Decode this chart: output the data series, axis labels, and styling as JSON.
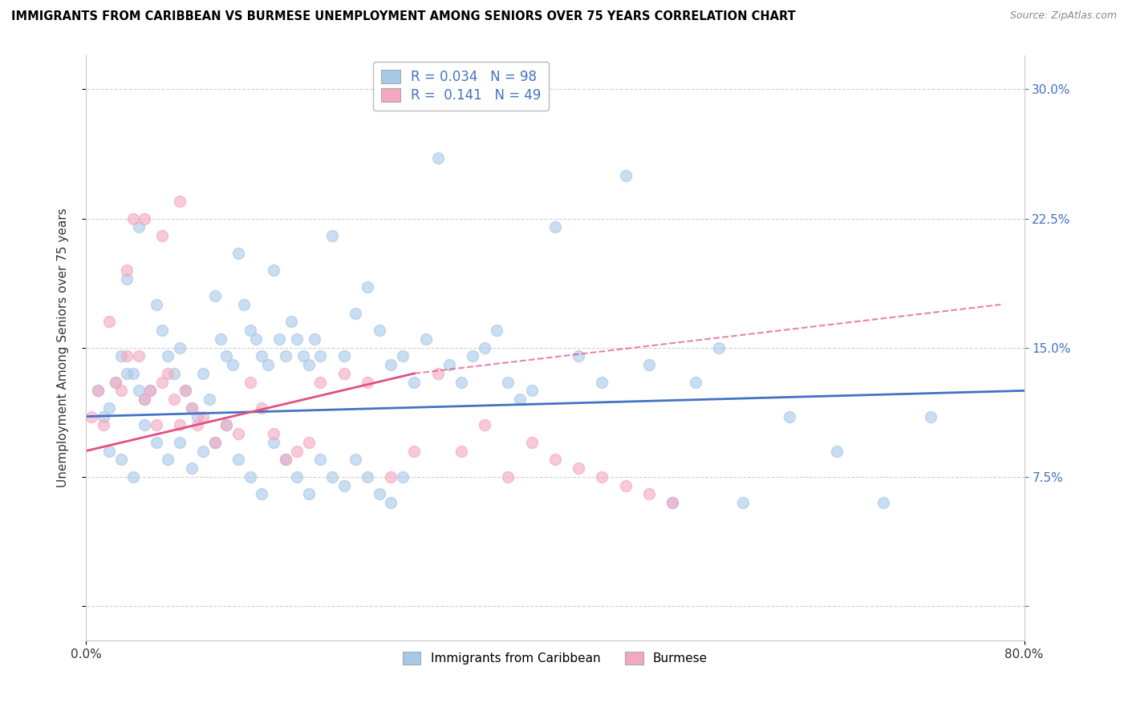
{
  "title": "IMMIGRANTS FROM CARIBBEAN VS BURMESE UNEMPLOYMENT AMONG SENIORS OVER 75 YEARS CORRELATION CHART",
  "source": "Source: ZipAtlas.com",
  "ylabel": "Unemployment Among Seniors over 75 years",
  "ytick_vals": [
    0.0,
    7.5,
    15.0,
    22.5,
    30.0
  ],
  "ytick_labels": [
    "",
    "7.5%",
    "15.0%",
    "22.5%",
    "30.0%"
  ],
  "ytick_labels_right": [
    "",
    "7.5%",
    "15.0%",
    "22.5%",
    "30.0%"
  ],
  "xmin": 0.0,
  "xmax": 80.0,
  "ymin": -2.0,
  "ymax": 32.0,
  "legend_entries": [
    {
      "label": "Immigrants from Caribbean",
      "color": "#a8c8e8",
      "R": 0.034,
      "N": 98
    },
    {
      "label": "Burmese",
      "color": "#f4a8c0",
      "R": 0.141,
      "N": 49
    }
  ],
  "caribbean_scatter_x": [
    1.0,
    1.5,
    2.0,
    2.5,
    3.0,
    3.5,
    4.0,
    4.5,
    5.0,
    5.5,
    6.0,
    6.5,
    7.0,
    7.5,
    8.0,
    8.5,
    9.0,
    9.5,
    10.0,
    10.5,
    11.0,
    11.5,
    12.0,
    12.5,
    13.0,
    13.5,
    14.0,
    14.5,
    15.0,
    15.5,
    16.0,
    16.5,
    17.0,
    17.5,
    18.0,
    18.5,
    19.0,
    19.5,
    20.0,
    21.0,
    22.0,
    23.0,
    24.0,
    25.0,
    26.0,
    27.0,
    28.0,
    29.0,
    30.0,
    31.0,
    32.0,
    33.0,
    34.0,
    35.0,
    36.0,
    37.0,
    38.0,
    40.0,
    42.0,
    44.0,
    46.0,
    48.0,
    50.0,
    52.0,
    54.0,
    56.0,
    60.0,
    64.0,
    68.0,
    72.0,
    2.0,
    3.0,
    4.0,
    5.0,
    6.0,
    7.0,
    8.0,
    9.0,
    10.0,
    11.0,
    12.0,
    13.0,
    14.0,
    15.0,
    16.0,
    17.0,
    18.0,
    19.0,
    20.0,
    21.0,
    22.0,
    23.0,
    24.0,
    25.0,
    26.0,
    27.0,
    3.5,
    4.5
  ],
  "caribbean_scatter_y": [
    12.5,
    11.0,
    11.5,
    13.0,
    14.5,
    13.5,
    13.5,
    12.5,
    12.0,
    12.5,
    17.5,
    16.0,
    14.5,
    13.5,
    15.0,
    12.5,
    11.5,
    11.0,
    13.5,
    12.0,
    18.0,
    15.5,
    14.5,
    14.0,
    20.5,
    17.5,
    16.0,
    15.5,
    14.5,
    14.0,
    19.5,
    15.5,
    14.5,
    16.5,
    15.5,
    14.5,
    14.0,
    15.5,
    14.5,
    21.5,
    14.5,
    17.0,
    18.5,
    16.0,
    14.0,
    14.5,
    13.0,
    15.5,
    26.0,
    14.0,
    13.0,
    14.5,
    15.0,
    16.0,
    13.0,
    12.0,
    12.5,
    22.0,
    14.5,
    13.0,
    25.0,
    14.0,
    6.0,
    13.0,
    15.0,
    6.0,
    11.0,
    9.0,
    6.0,
    11.0,
    9.0,
    8.5,
    7.5,
    10.5,
    9.5,
    8.5,
    9.5,
    8.0,
    9.0,
    9.5,
    10.5,
    8.5,
    7.5,
    6.5,
    9.5,
    8.5,
    7.5,
    6.5,
    8.5,
    7.5,
    7.0,
    8.5,
    7.5,
    6.5,
    6.0,
    7.5,
    19.0,
    22.0
  ],
  "burmese_scatter_x": [
    0.5,
    1.0,
    1.5,
    2.0,
    2.5,
    3.0,
    3.5,
    4.0,
    4.5,
    5.0,
    5.5,
    6.0,
    6.5,
    7.0,
    7.5,
    8.0,
    8.5,
    9.0,
    9.5,
    10.0,
    11.0,
    12.0,
    13.0,
    14.0,
    15.0,
    16.0,
    17.0,
    18.0,
    19.0,
    20.0,
    22.0,
    24.0,
    26.0,
    28.0,
    30.0,
    32.0,
    34.0,
    36.0,
    38.0,
    40.0,
    42.0,
    44.0,
    46.0,
    48.0,
    50.0,
    3.5,
    5.0,
    6.5,
    8.0
  ],
  "burmese_scatter_y": [
    11.0,
    12.5,
    10.5,
    16.5,
    13.0,
    12.5,
    14.5,
    22.5,
    14.5,
    12.0,
    12.5,
    10.5,
    13.0,
    13.5,
    12.0,
    10.5,
    12.5,
    11.5,
    10.5,
    11.0,
    9.5,
    10.5,
    10.0,
    13.0,
    11.5,
    10.0,
    8.5,
    9.0,
    9.5,
    13.0,
    13.5,
    13.0,
    7.5,
    9.0,
    13.5,
    9.0,
    10.5,
    7.5,
    9.5,
    8.5,
    8.0,
    7.5,
    7.0,
    6.5,
    6.0,
    19.5,
    22.5,
    21.5,
    23.5
  ],
  "caribbean_line_x": [
    0.0,
    80.0
  ],
  "caribbean_line_y": [
    11.0,
    12.5
  ],
  "burmese_solid_line_x": [
    0.0,
    28.0
  ],
  "burmese_solid_line_y": [
    9.0,
    13.5
  ],
  "burmese_dashed_line_x": [
    28.0,
    78.0
  ],
  "burmese_dashed_line_y": [
    13.5,
    17.5
  ],
  "scatter_alpha": 0.6,
  "scatter_size": 100,
  "caribbean_color": "#a8c8e8",
  "burmese_color": "#f4a8c0",
  "caribbean_line_color": "#4472c4",
  "burmese_line_color": "#e05080",
  "background_color": "#ffffff",
  "grid_color": "#cccccc",
  "marker_edge_width": 1.2
}
